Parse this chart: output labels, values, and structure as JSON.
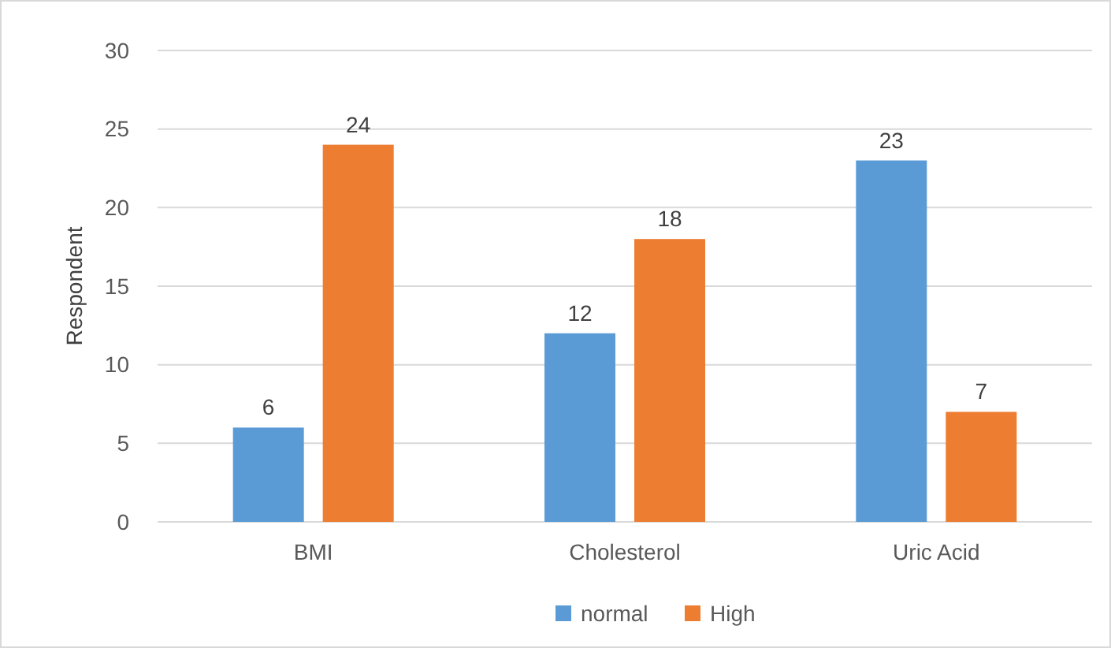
{
  "chart_data": {
    "type": "bar",
    "ylabel": "Respondent",
    "categories": [
      "BMI",
      "Cholesterol",
      "Uric Acid"
    ],
    "series": [
      {
        "name": "normal",
        "color": "#5b9bd5",
        "values": [
          6,
          12,
          23
        ]
      },
      {
        "name": "High",
        "color": "#ed7d31",
        "values": [
          24,
          18,
          7
        ]
      }
    ],
    "ylim": [
      0,
      30
    ],
    "yticks": [
      0,
      5,
      10,
      15,
      20,
      25,
      30
    ],
    "grid": "y",
    "legend": "bottom",
    "data_labels": true
  }
}
